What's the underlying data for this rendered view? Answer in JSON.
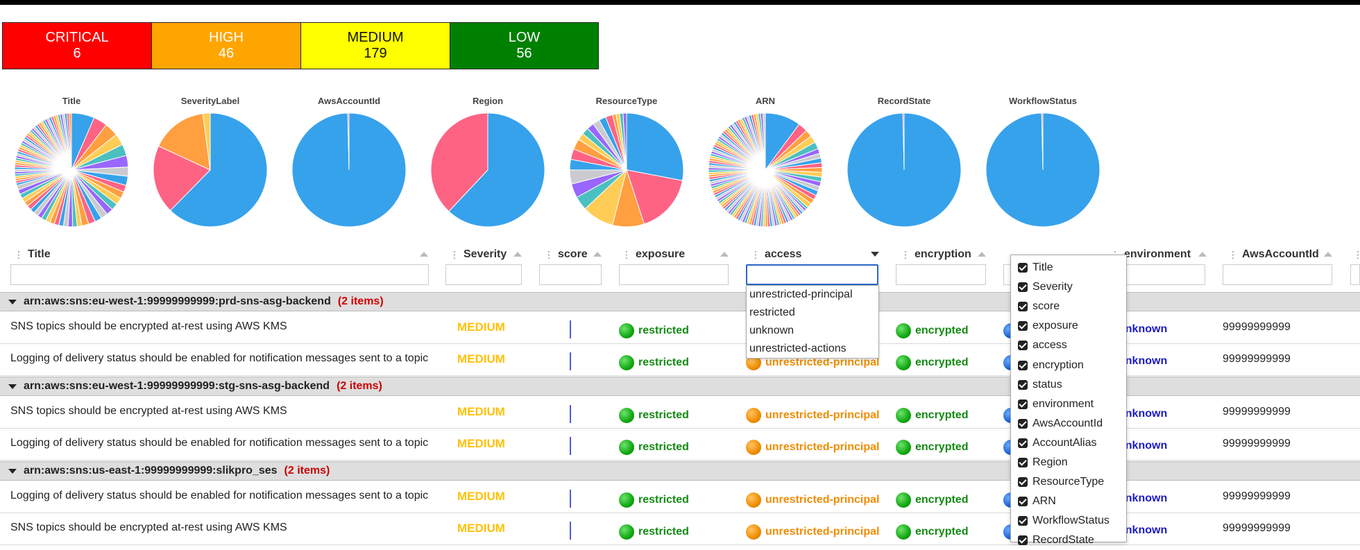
{
  "severity_summary": [
    {
      "label": "CRITICAL",
      "count": "6",
      "color": "#ff0000"
    },
    {
      "label": "HIGH",
      "count": "46",
      "color": "#ffa500"
    },
    {
      "label": "MEDIUM",
      "count": "179",
      "color": "#ffff00"
    },
    {
      "label": "LOW",
      "count": "56",
      "color": "#008000"
    }
  ],
  "pies": [
    {
      "title": "Title"
    },
    {
      "title": "SeverityLabel"
    },
    {
      "title": "AwsAccountId"
    },
    {
      "title": "Region"
    },
    {
      "title": "ResourceType"
    },
    {
      "title": "ARN"
    },
    {
      "title": "RecordState"
    },
    {
      "title": "WorkflowStatus"
    }
  ],
  "chart_data": [
    {
      "type": "pie",
      "title": "Title",
      "values": [
        10,
        6,
        6,
        5,
        5,
        5,
        4,
        4,
        3,
        3,
        3,
        3,
        3,
        3,
        3,
        3,
        3,
        2,
        2,
        2,
        2,
        2,
        2,
        2,
        2,
        2,
        2,
        2,
        2,
        2,
        2,
        2,
        2,
        2,
        2,
        1,
        1,
        1,
        1,
        1,
        1,
        1,
        1,
        1,
        1,
        1,
        1,
        1,
        1,
        1,
        1,
        1,
        1,
        1,
        1,
        1,
        1,
        1,
        1,
        1,
        1,
        1,
        1,
        1,
        1,
        1,
        1,
        1,
        1,
        1,
        1,
        1,
        1,
        1,
        1,
        1,
        1,
        1,
        1,
        1
      ]
    },
    {
      "type": "pie",
      "title": "SeverityLabel",
      "values": [
        179,
        56,
        46,
        6
      ]
    },
    {
      "type": "pie",
      "title": "AwsAccountId",
      "values": [
        286,
        1
      ]
    },
    {
      "type": "pie",
      "title": "Region",
      "values": [
        62,
        38
      ]
    },
    {
      "type": "pie",
      "title": "ResourceType",
      "values": [
        28,
        17,
        9,
        9,
        4,
        4,
        4,
        3,
        3,
        3,
        2,
        2,
        2,
        2,
        2,
        2,
        1,
        1,
        1,
        1
      ]
    },
    {
      "type": "pie",
      "title": "ARN",
      "values": [
        15,
        4,
        3,
        3,
        3,
        2,
        2,
        2,
        2,
        2,
        2,
        2,
        2,
        2,
        2,
        2,
        2,
        2,
        1,
        1,
        1,
        1,
        1,
        1,
        1,
        1,
        1,
        1,
        1,
        1,
        1,
        1,
        1,
        1,
        1,
        1,
        1,
        1,
        1,
        1,
        1,
        1,
        1,
        1,
        1,
        1,
        1,
        1,
        1,
        1,
        1,
        1,
        1,
        1,
        1,
        1,
        1,
        1,
        1,
        1,
        1,
        1,
        1,
        1,
        1,
        1,
        1,
        1,
        1,
        1,
        1,
        1,
        1,
        1,
        1,
        1,
        1,
        1,
        1,
        1,
        1,
        1,
        1,
        1,
        1,
        1,
        1,
        1,
        1,
        1,
        1,
        1,
        1,
        1,
        1,
        1,
        1,
        1,
        1,
        1,
        1,
        1,
        1,
        1,
        1,
        1,
        1,
        1,
        1,
        1,
        1,
        1
      ]
    },
    {
      "type": "pie",
      "title": "RecordState",
      "values": [
        286,
        1
      ]
    },
    {
      "type": "pie",
      "title": "WorkflowStatus",
      "values": [
        286,
        1
      ]
    }
  ],
  "palette": [
    "#36a2eb",
    "#ff6384",
    "#ff9f40",
    "#ffcd56",
    "#4bc0c0",
    "#9966ff",
    "#c9cbcf",
    "#36a2eb"
  ],
  "columns": [
    {
      "key": "title",
      "label": "Title"
    },
    {
      "key": "severity",
      "label": "Severity"
    },
    {
      "key": "score",
      "label": "score"
    },
    {
      "key": "exposure",
      "label": "exposure"
    },
    {
      "key": "access",
      "label": "access"
    },
    {
      "key": "encryption",
      "label": "encryption"
    },
    {
      "key": "status",
      "label": "status"
    },
    {
      "key": "environment",
      "label": "environment"
    },
    {
      "key": "awsaccountid",
      "label": "AwsAccountId"
    }
  ],
  "access_filter_options": [
    "unrestricted-principal",
    "restricted",
    "unknown",
    "unrestricted-actions"
  ],
  "column_chooser": [
    "Title",
    "Severity",
    "score",
    "exposure",
    "access",
    "encryption",
    "status",
    "environment",
    "AwsAccountId",
    "AccountAlias",
    "Region",
    "ResourceType",
    "ARN",
    "WorkflowStatus",
    "RecordState"
  ],
  "groups": [
    {
      "arn": "arn:aws:sns:eu-west-1:99999999999:prd-sns-asg-backend",
      "count": "(2 items)",
      "rows": [
        {
          "title": "SNS topics should be encrypted at-rest using AWS KMS",
          "severity": "MEDIUM",
          "exposure": "restricted",
          "access": "unrestricted-principal",
          "encryption": "encrypted",
          "environment": "unknown",
          "account": "99999999999"
        },
        {
          "title": "Logging of delivery status should be enabled for notification messages sent to a topic",
          "severity": "MEDIUM",
          "exposure": "restricted",
          "access": "unrestricted-principal",
          "encryption": "encrypted",
          "environment": "unknown",
          "account": "99999999999"
        }
      ]
    },
    {
      "arn": "arn:aws:sns:eu-west-1:99999999999:stg-sns-asg-backend",
      "count": "(2 items)",
      "rows": [
        {
          "title": "SNS topics should be encrypted at-rest using AWS KMS",
          "severity": "MEDIUM",
          "exposure": "restricted",
          "access": "unrestricted-principal",
          "encryption": "encrypted",
          "environment": "unknown",
          "account": "99999999999"
        },
        {
          "title": "Logging of delivery status should be enabled for notification messages sent to a topic",
          "severity": "MEDIUM",
          "exposure": "restricted",
          "access": "unrestricted-principal",
          "encryption": "encrypted",
          "environment": "unknown",
          "account": "99999999999"
        }
      ]
    },
    {
      "arn": "arn:aws:sns:us-east-1:99999999999:slikpro_ses",
      "count": "(2 items)",
      "rows": [
        {
          "title": "Logging of delivery status should be enabled for notification messages sent to a topic",
          "severity": "MEDIUM",
          "exposure": "restricted",
          "access": "unrestricted-principal",
          "encryption": "encrypted",
          "environment": "unknown",
          "account": "99999999999"
        },
        {
          "title": "SNS topics should be encrypted at-rest using AWS KMS",
          "severity": "MEDIUM",
          "exposure": "restricted",
          "access": "unrestricted-principal",
          "encryption": "encrypted",
          "environment": "unknown",
          "account": "99999999999"
        }
      ]
    }
  ]
}
